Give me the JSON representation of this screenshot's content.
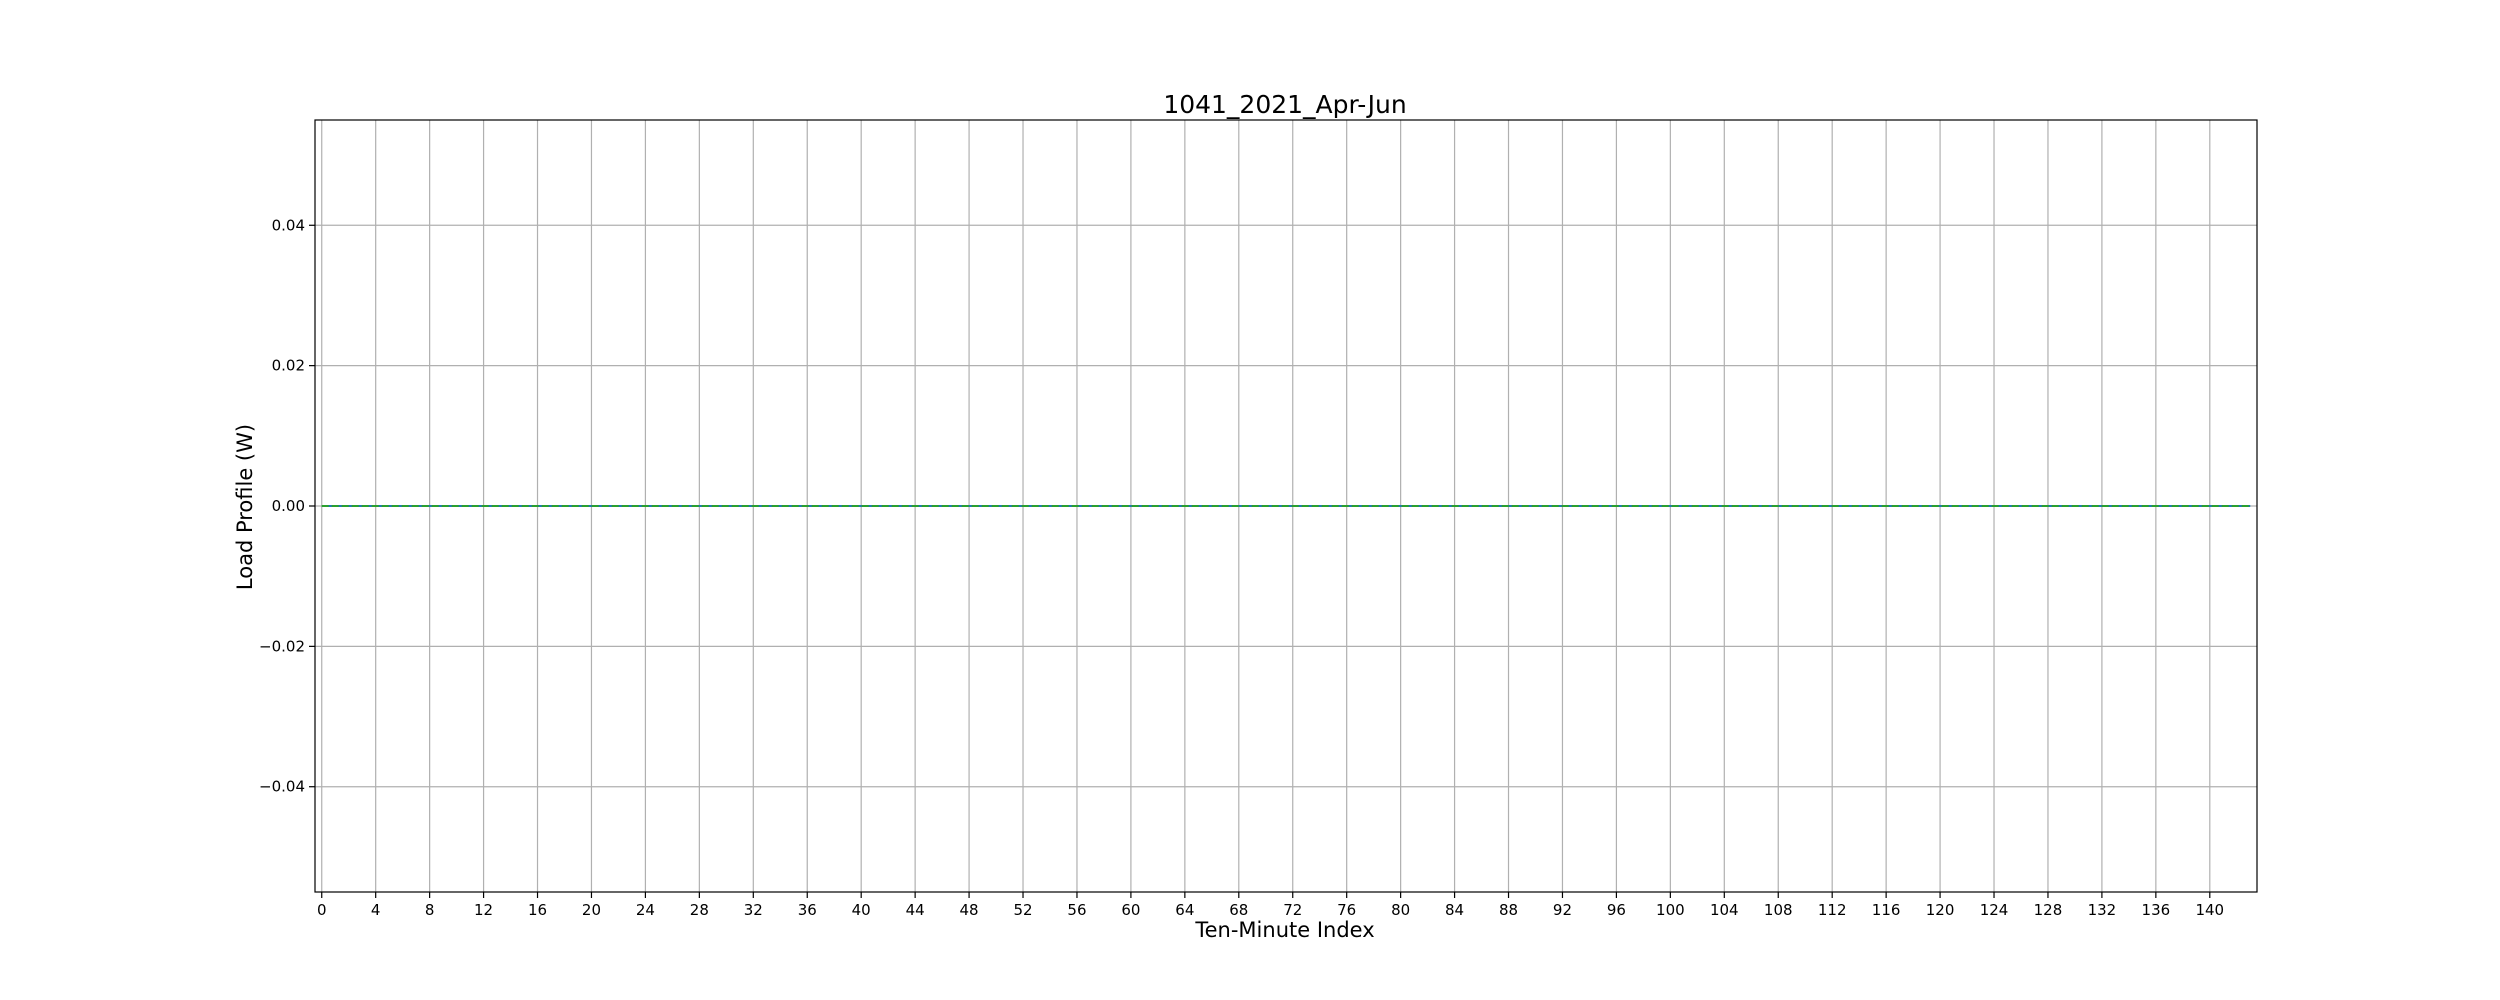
{
  "chart_data": {
    "type": "line",
    "title": "1041_2021_Apr-Jun",
    "xlabel": "Ten-Minute Index",
    "ylabel": "Load Profile (W)",
    "xlim": [
      -0.5,
      143.5
    ],
    "ylim": [
      -0.055,
      0.055
    ],
    "xticks": [
      0,
      4,
      8,
      12,
      16,
      20,
      24,
      28,
      32,
      36,
      40,
      44,
      48,
      52,
      56,
      60,
      64,
      68,
      72,
      76,
      80,
      84,
      88,
      92,
      96,
      100,
      104,
      108,
      112,
      116,
      120,
      124,
      128,
      132,
      136,
      140
    ],
    "yticks": [
      {
        "value": -0.04,
        "label": "−0.04"
      },
      {
        "value": -0.02,
        "label": "−0.02"
      },
      {
        "value": 0.0,
        "label": "0.00"
      },
      {
        "value": 0.02,
        "label": "0.02"
      },
      {
        "value": 0.04,
        "label": "0.04"
      }
    ],
    "grid": true,
    "series": [
      {
        "style": "solid",
        "color": "#1f77b4",
        "x": [
          0,
          143
        ],
        "y": [
          0.0,
          0.0
        ]
      },
      {
        "style": "dashed",
        "color": "#2ca02c",
        "x": [
          0,
          143
        ],
        "y": [
          0.0,
          0.0
        ]
      }
    ]
  },
  "colors": {
    "grid": "#b0b0b0",
    "axes": "#000000",
    "background": "#ffffff"
  }
}
